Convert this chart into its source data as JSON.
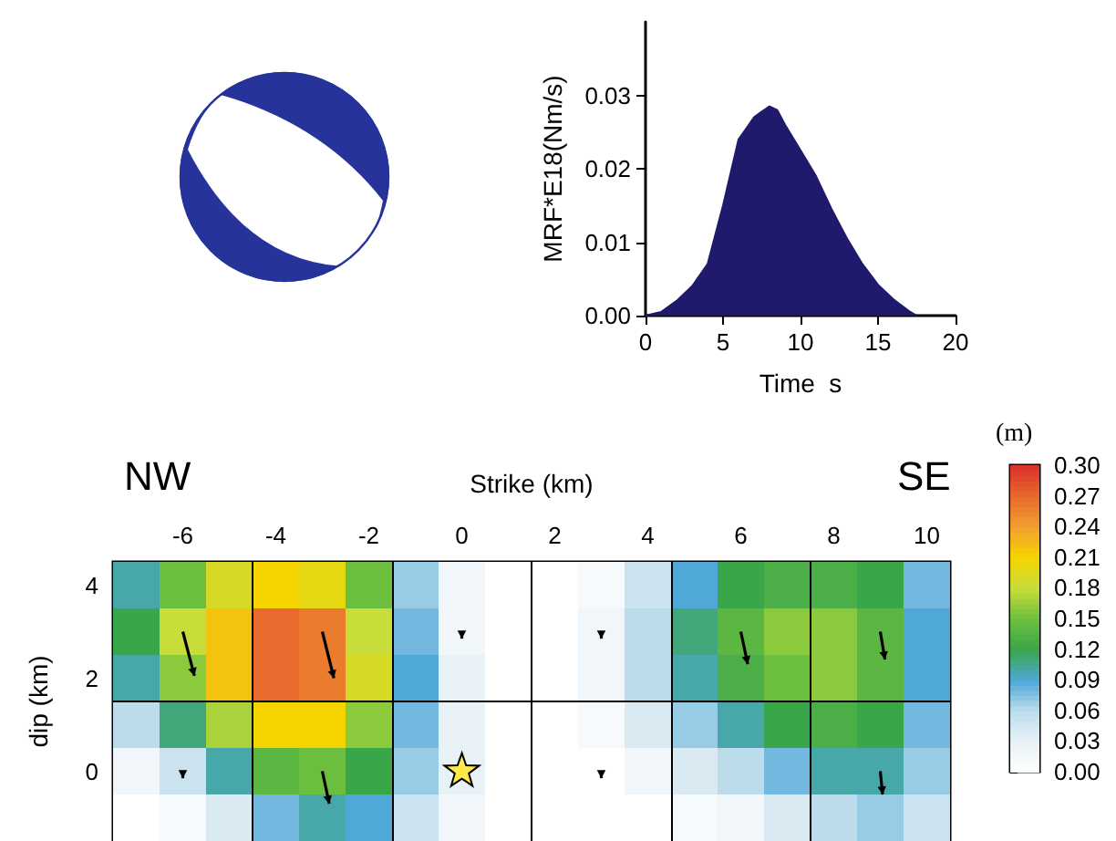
{
  "chart_data": [
    {
      "type": "area",
      "xlabel": "Time  s",
      "ylabel": "MRF*E18(Nm/s)",
      "marker": "none",
      "x": [
        0,
        1,
        2,
        3,
        4,
        5,
        6,
        6.5,
        7,
        7.5,
        8,
        8.5,
        9,
        10,
        11,
        12,
        13,
        14,
        15,
        16,
        17,
        17.5
      ],
      "series": [
        {
          "color": "#1f1a6b",
          "values": [
            0,
            0.0005,
            0.002,
            0.004,
            0.007,
            0.015,
            0.024,
            0.0255,
            0.027,
            0.0278,
            0.0285,
            0.028,
            0.026,
            0.0225,
            0.019,
            0.0145,
            0.0105,
            0.007,
            0.0042,
            0.0022,
            0.0006,
            0
          ]
        }
      ],
      "xlim": [
        0,
        20
      ],
      "xticks": [
        0,
        5,
        10,
        15,
        20
      ],
      "ylim": [
        0,
        0.04
      ],
      "yticks": [
        {
          "value": 0,
          "label": "0.00"
        },
        {
          "value": 0.01,
          "label": "0.01"
        },
        {
          "value": 0.02,
          "label": "0.02"
        },
        {
          "value": 0.03,
          "label": "0.03"
        }
      ],
      "grid": false
    },
    {
      "type": "heatmap",
      "xlabel": "Strike (km)",
      "ylabel": "dip (km)",
      "clabel": "(m)",
      "annotations": [
        "NW",
        "SE"
      ],
      "x": [
        -7,
        -6,
        -5,
        -4,
        -3,
        -2,
        -1,
        0,
        1,
        2,
        3,
        4,
        5,
        6,
        7,
        8,
        9,
        10
      ],
      "y": [
        4,
        3,
        2,
        1,
        0,
        -1
      ],
      "cells": [
        [
          0.1,
          0.15,
          0.19,
          0.21,
          0.2,
          0.15,
          0.07,
          0.02,
          0,
          0,
          0.01,
          0.05,
          0.09,
          0.12,
          0.13,
          0.13,
          0.12,
          0.08
        ],
        [
          0.12,
          0.18,
          0.22,
          0.27,
          0.26,
          0.18,
          0.08,
          0.02,
          0,
          0,
          0.02,
          0.06,
          0.11,
          0.14,
          0.16,
          0.16,
          0.14,
          0.09
        ],
        [
          0.1,
          0.16,
          0.22,
          0.27,
          0.26,
          0.19,
          0.09,
          0.03,
          0,
          0,
          0.02,
          0.06,
          0.1,
          0.13,
          0.15,
          0.16,
          0.14,
          0.09
        ],
        [
          0.06,
          0.11,
          0.17,
          0.21,
          0.21,
          0.16,
          0.08,
          0.03,
          0,
          0,
          0.01,
          0.04,
          0.07,
          0.1,
          0.12,
          0.13,
          0.12,
          0.08
        ],
        [
          0.02,
          0.05,
          0.1,
          0.14,
          0.15,
          0.12,
          0.07,
          0.03,
          0,
          0,
          0,
          0.02,
          0.04,
          0.06,
          0.08,
          0.1,
          0.1,
          0.07
        ],
        [
          0,
          0.01,
          0.04,
          0.08,
          0.1,
          0.09,
          0.05,
          0.02,
          0,
          0,
          0,
          0,
          0.01,
          0.02,
          0.04,
          0.06,
          0.07,
          0.05
        ]
      ],
      "colors": [
        "#ffffff",
        "#e8f1f6",
        "#bcdcec",
        "#4fa8d8",
        "#3aa64a",
        "#6cbf3e",
        "#c8dc3a",
        "#f5d400",
        "#f0a030",
        "#e86a2c",
        "#d9302a"
      ],
      "clim": [
        0,
        0.3
      ],
      "cticks": [
        {
          "value": 0,
          "label": "0.00"
        },
        {
          "value": 0.03,
          "label": "0.03"
        },
        {
          "value": 0.06,
          "label": "0.06"
        },
        {
          "value": 0.09,
          "label": "0.09"
        },
        {
          "value": 0.12,
          "label": "0.12"
        },
        {
          "value": 0.15,
          "label": "0.15"
        },
        {
          "value": 0.18,
          "label": "0.18"
        },
        {
          "value": 0.21,
          "label": "0.21"
        },
        {
          "value": 0.24,
          "label": "0.24"
        },
        {
          "value": 0.27,
          "label": "0.27"
        },
        {
          "value": 0.3,
          "label": "0.30"
        }
      ],
      "xlim": [
        -7.5,
        10.5
      ],
      "xticks": [
        -6,
        -4,
        -2,
        0,
        2,
        4,
        6,
        8,
        10
      ],
      "ylim": [
        -1.5,
        4.5
      ],
      "yticks": [
        0,
        2,
        4
      ],
      "ref_lines": [
        {
          "axis": "x",
          "value": -4.5,
          "color": "#000000"
        },
        {
          "axis": "x",
          "value": -1.5,
          "color": "#000000"
        },
        {
          "axis": "x",
          "value": 1.5,
          "color": "#000000"
        },
        {
          "axis": "x",
          "value": 4.5,
          "color": "#000000"
        },
        {
          "axis": "x",
          "value": 7.5,
          "color": "#000000"
        },
        {
          "axis": "y",
          "value": 1.5,
          "color": "#000000"
        }
      ],
      "grid": false
    }
  ]
}
